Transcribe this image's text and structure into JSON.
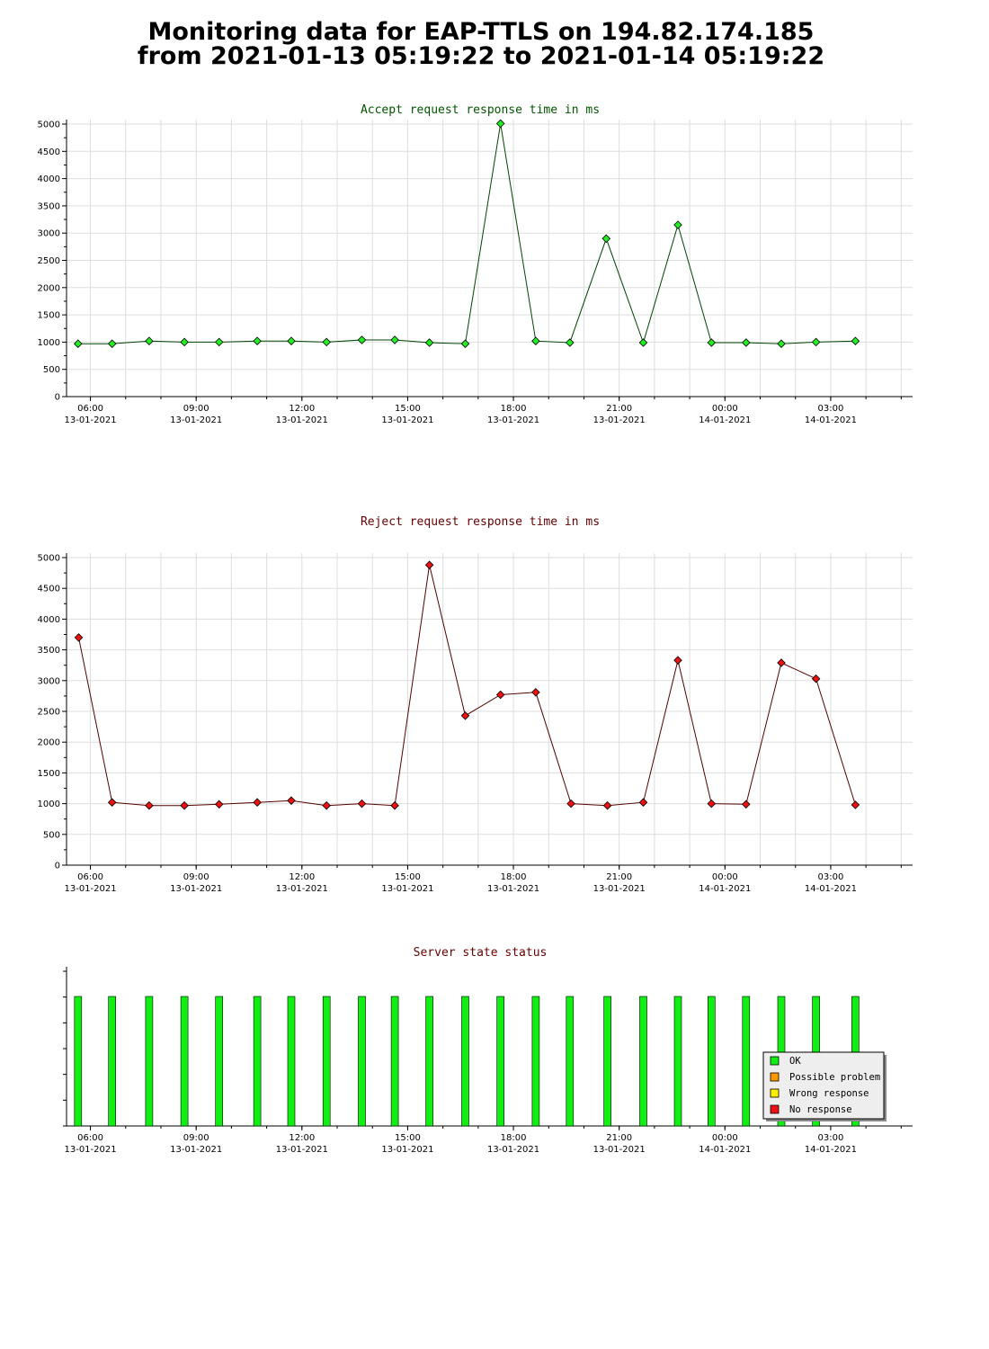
{
  "page": {
    "title_line1": "Monitoring data for EAP-TTLS on 194.82.174.185",
    "title_line2": "from 2021-01-13 05:19:22 to 2021-01-14 05:19:22"
  },
  "colors": {
    "accept_line": "#004400",
    "accept_marker": "#22ee22",
    "accept_title": "#005500",
    "reject_line": "#550000",
    "reject_marker": "#ee1111",
    "reject_title": "#660000",
    "status_ok": "#11ee11",
    "status_possible_problem": "#ff9900",
    "status_wrong_response": "#ffee00",
    "status_no_response": "#ee1111",
    "grid": "#dddddd"
  },
  "chart_data": [
    {
      "type": "line",
      "title": "Accept request response time in ms",
      "xlabel": "",
      "ylabel": "",
      "x_range": [
        "2021-01-13 05:19:22",
        "2021-01-14 05:19:22"
      ],
      "ylim": [
        0,
        5000
      ],
      "y_ticks": [
        0,
        500,
        1000,
        1500,
        2000,
        2500,
        3000,
        3500,
        4000,
        4500,
        5000
      ],
      "x_ticks": [
        {
          "time": "06:00",
          "date": "13-01-2021"
        },
        {
          "time": "09:00",
          "date": "13-01-2021"
        },
        {
          "time": "12:00",
          "date": "13-01-2021"
        },
        {
          "time": "15:00",
          "date": "13-01-2021"
        },
        {
          "time": "18:00",
          "date": "13-01-2021"
        },
        {
          "time": "21:00",
          "date": "13-01-2021"
        },
        {
          "time": "00:00",
          "date": "14-01-2021"
        },
        {
          "time": "03:00",
          "date": "14-01-2021"
        }
      ],
      "grid": true,
      "series": [
        {
          "x": [
            "2021-01-13 05:39",
            "2021-01-13 06:37",
            "2021-01-13 07:40",
            "2021-01-13 08:40",
            "2021-01-13 09:39",
            "2021-01-13 10:44",
            "2021-01-13 11:42",
            "2021-01-13 12:42",
            "2021-01-13 13:42",
            "2021-01-13 14:38",
            "2021-01-13 15:37",
            "2021-01-13 16:38",
            "2021-01-13 17:38",
            "2021-01-13 18:38",
            "2021-01-13 19:36",
            "2021-01-13 20:38",
            "2021-01-13 21:41",
            "2021-01-13 22:40",
            "2021-01-13 23:37",
            "2021-01-14 00:36",
            "2021-01-14 01:36",
            "2021-01-14 02:35",
            "2021-01-14 03:42"
          ],
          "values": [
            970,
            970,
            1020,
            1000,
            1000,
            1020,
            1020,
            1000,
            1040,
            1040,
            990,
            970,
            5010,
            1020,
            990,
            2900,
            990,
            3150,
            990,
            990,
            970,
            1000,
            1020
          ]
        }
      ]
    },
    {
      "type": "line",
      "title": "Reject request response time in ms",
      "xlabel": "",
      "ylabel": "",
      "x_range": [
        "2021-01-13 05:19:22",
        "2021-01-14 05:19:22"
      ],
      "ylim": [
        0,
        5000
      ],
      "y_ticks": [
        0,
        500,
        1000,
        1500,
        2000,
        2500,
        3000,
        3500,
        4000,
        4500,
        5000
      ],
      "x_ticks": [
        {
          "time": "06:00",
          "date": "13-01-2021"
        },
        {
          "time": "09:00",
          "date": "13-01-2021"
        },
        {
          "time": "12:00",
          "date": "13-01-2021"
        },
        {
          "time": "15:00",
          "date": "13-01-2021"
        },
        {
          "time": "18:00",
          "date": "13-01-2021"
        },
        {
          "time": "21:00",
          "date": "13-01-2021"
        },
        {
          "time": "00:00",
          "date": "14-01-2021"
        },
        {
          "time": "03:00",
          "date": "14-01-2021"
        }
      ],
      "grid": true,
      "series": [
        {
          "x": [
            "2021-01-13 05:40",
            "2021-01-13 06:37",
            "2021-01-13 07:40",
            "2021-01-13 08:40",
            "2021-01-13 09:39",
            "2021-01-13 10:44",
            "2021-01-13 11:42",
            "2021-01-13 12:42",
            "2021-01-13 13:42",
            "2021-01-13 14:38",
            "2021-01-13 15:37",
            "2021-01-13 16:38",
            "2021-01-13 17:38",
            "2021-01-13 18:38",
            "2021-01-13 19:38",
            "2021-01-13 20:40",
            "2021-01-13 21:41",
            "2021-01-13 22:40",
            "2021-01-13 23:37",
            "2021-01-14 00:36",
            "2021-01-14 01:36",
            "2021-01-14 02:35",
            "2021-01-14 03:42"
          ],
          "values": [
            3700,
            1020,
            970,
            970,
            990,
            1020,
            1050,
            970,
            1000,
            970,
            4880,
            2430,
            2770,
            2810,
            1000,
            970,
            1020,
            3330,
            1000,
            990,
            3290,
            3030,
            980
          ]
        }
      ]
    },
    {
      "type": "bar",
      "title": "Server state status",
      "xlabel": "",
      "ylabel": "",
      "x_range": [
        "2021-01-13 05:19:22",
        "2021-01-14 05:19:22"
      ],
      "x_ticks": [
        {
          "time": "06:00",
          "date": "13-01-2021"
        },
        {
          "time": "09:00",
          "date": "13-01-2021"
        },
        {
          "time": "12:00",
          "date": "13-01-2021"
        },
        {
          "time": "15:00",
          "date": "13-01-2021"
        },
        {
          "time": "18:00",
          "date": "13-01-2021"
        },
        {
          "time": "21:00",
          "date": "13-01-2021"
        },
        {
          "time": "00:00",
          "date": "14-01-2021"
        },
        {
          "time": "03:00",
          "date": "14-01-2021"
        }
      ],
      "grid": false,
      "legend_position": "bottom-right",
      "legend": [
        {
          "label": "OK",
          "color": "#11ee11"
        },
        {
          "label": "Possible problem",
          "color": "#ff9900"
        },
        {
          "label": "Wrong response",
          "color": "#ffee00"
        },
        {
          "label": "No response",
          "color": "#ee1111"
        }
      ],
      "series": [
        {
          "name": "OK",
          "x": [
            "2021-01-13 05:39",
            "2021-01-13 06:37",
            "2021-01-13 07:40",
            "2021-01-13 08:40",
            "2021-01-13 09:39",
            "2021-01-13 10:44",
            "2021-01-13 11:42",
            "2021-01-13 12:42",
            "2021-01-13 13:42",
            "2021-01-13 14:38",
            "2021-01-13 15:37",
            "2021-01-13 16:38",
            "2021-01-13 17:38",
            "2021-01-13 18:38",
            "2021-01-13 19:36",
            "2021-01-13 20:40",
            "2021-01-13 21:41",
            "2021-01-13 22:40",
            "2021-01-13 23:37",
            "2021-01-14 00:36",
            "2021-01-14 01:36",
            "2021-01-14 02:35",
            "2021-01-14 03:42"
          ],
          "values": [
            1,
            1,
            1,
            1,
            1,
            1,
            1,
            1,
            1,
            1,
            1,
            1,
            1,
            1,
            1,
            1,
            1,
            1,
            1,
            1,
            1,
            1,
            1
          ]
        }
      ]
    }
  ]
}
